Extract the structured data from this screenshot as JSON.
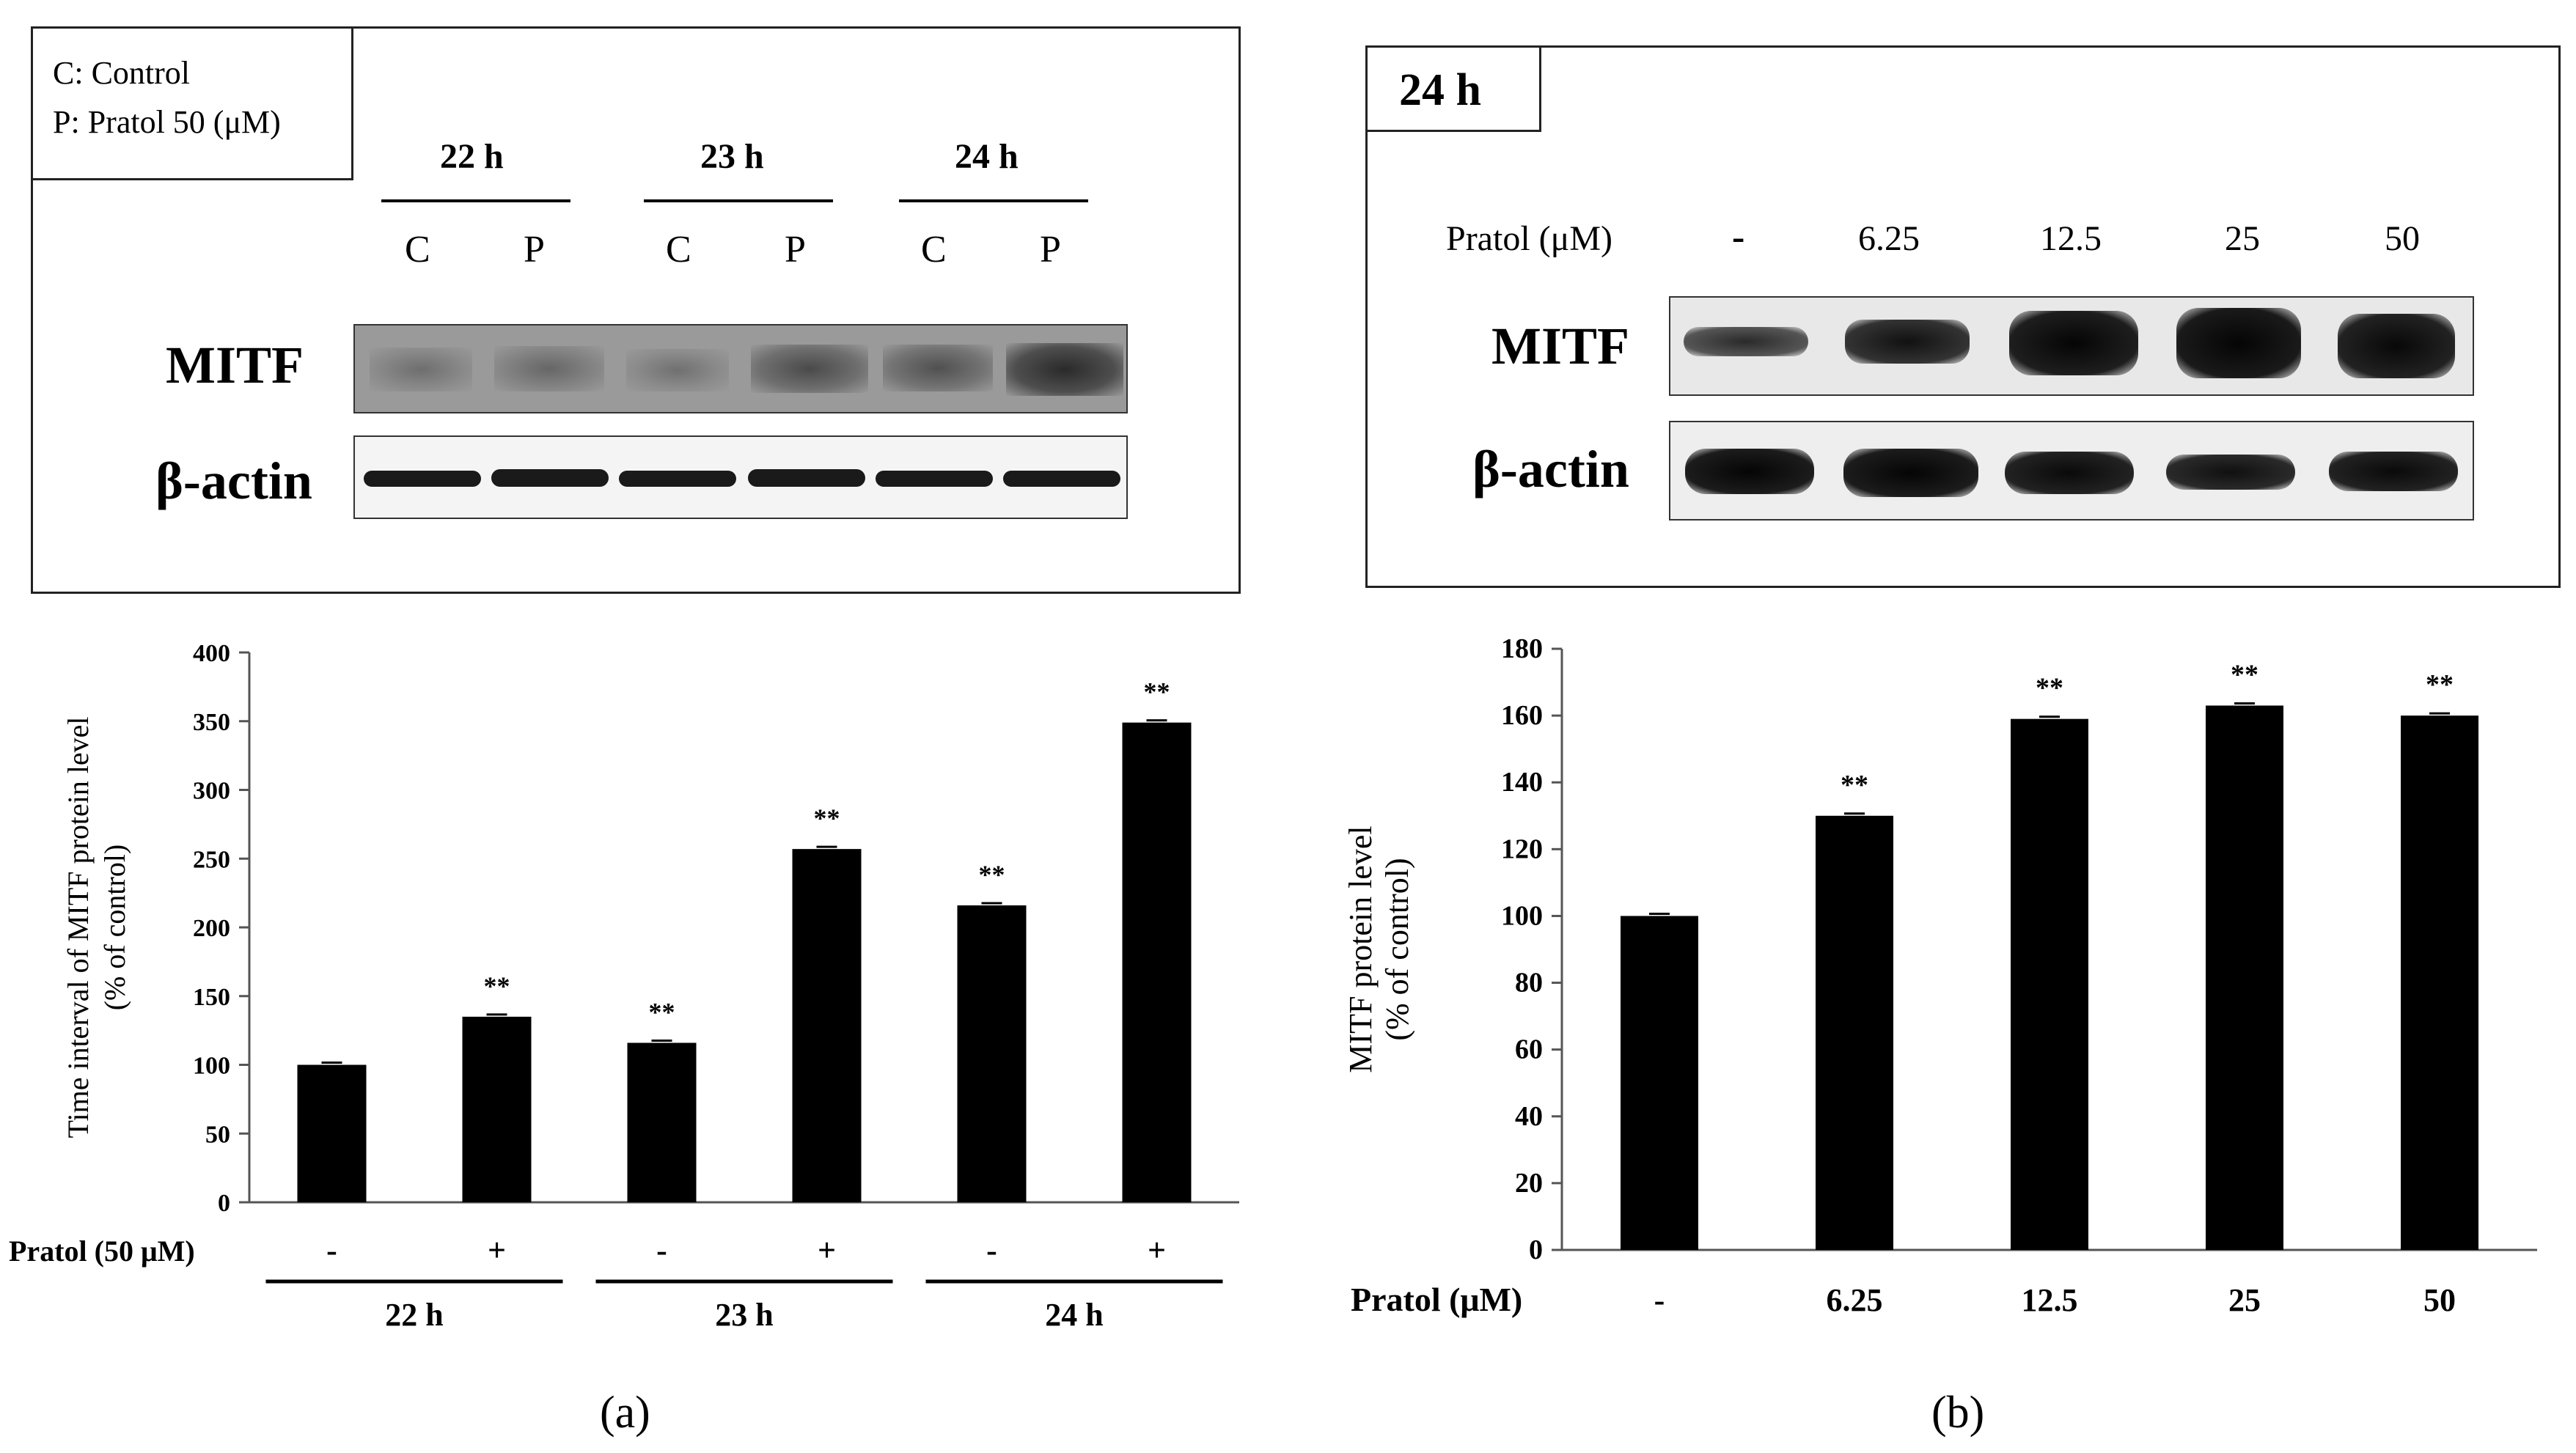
{
  "panel_a": {
    "legend_lines": [
      "C: Control",
      "P: Pratol 50 (μM)"
    ],
    "time_groups": [
      {
        "label": "22 h",
        "lanes": [
          "C",
          "P"
        ]
      },
      {
        "label": "23 h",
        "lanes": [
          "C",
          "P"
        ]
      },
      {
        "label": "24 h",
        "lanes": [
          "C",
          "P"
        ]
      }
    ],
    "blot_labels": {
      "mitf": "MITF",
      "actin": "β-actin"
    },
    "caption": "(a)"
  },
  "panel_b": {
    "time_tag": "24 h",
    "dose_header": "Pratol (μM)",
    "doses": [
      "-",
      "6.25",
      "12.5",
      "25",
      "50"
    ],
    "blot_labels": {
      "mitf": "MITF",
      "actin": "β-actin"
    },
    "caption": "(b)"
  },
  "chart_data": [
    {
      "type": "bar",
      "ylabel": "Time interval of MITF protein level",
      "ylabel2": "(% of control)",
      "ylim": [
        0,
        400
      ],
      "yticks": [
        0,
        50,
        100,
        150,
        200,
        250,
        300,
        350,
        400
      ],
      "xrow_label": "Pratol (50 μM)",
      "categories": [
        "-",
        "+",
        "-",
        "+",
        "-",
        "+"
      ],
      "groups": [
        {
          "label": "22 h",
          "bars": [
            0,
            1
          ]
        },
        {
          "label": "23 h",
          "bars": [
            2,
            3
          ]
        },
        {
          "label": "24 h",
          "bars": [
            4,
            5
          ]
        }
      ],
      "values": [
        100,
        135,
        116,
        257,
        216,
        349
      ],
      "significance": [
        "",
        "**",
        "**",
        "**",
        "**",
        "**"
      ],
      "bar_color": "#000000",
      "grid": false
    },
    {
      "type": "bar",
      "ylabel": "MITF protein level",
      "ylabel2": "(% of control)",
      "ylim": [
        0,
        180
      ],
      "yticks": [
        0,
        20,
        40,
        60,
        80,
        100,
        120,
        140,
        160,
        180
      ],
      "xrow_label": "Pratol (μM)",
      "categories": [
        "-",
        "6.25",
        "12.5",
        "25",
        "50"
      ],
      "values": [
        100,
        130,
        159,
        163,
        160
      ],
      "significance": [
        "",
        "**",
        "**",
        "**",
        "**"
      ],
      "bar_color": "#000000",
      "grid": false
    }
  ]
}
